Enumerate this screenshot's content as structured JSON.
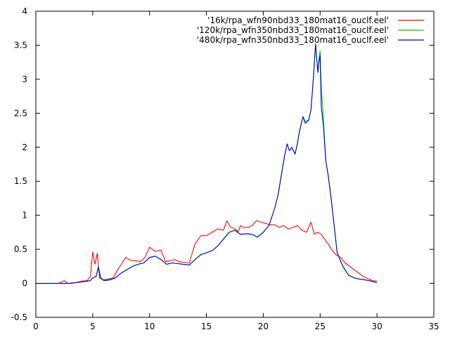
{
  "chart_data": {
    "type": "line",
    "title": "",
    "xlabel": "",
    "ylabel": "",
    "xlim": [
      0,
      35
    ],
    "ylim": [
      -0.5,
      4
    ],
    "xticks": [
      0,
      5,
      10,
      15,
      20,
      25,
      30,
      35
    ],
    "yticks": [
      -0.5,
      0,
      0.5,
      1,
      1.5,
      2,
      2.5,
      3,
      3.5,
      4
    ],
    "grid": false,
    "legend_position": "top-right",
    "series": [
      {
        "name": "'16k/rpa_wfn90nbd33_180mat16_ouclf.eel'",
        "color": "#ff0000",
        "x": [
          0,
          2,
          2.5,
          2.8,
          3.5,
          4,
          4.5,
          4.8,
          5.0,
          5.2,
          5.4,
          5.6,
          5.9,
          6.3,
          6.8,
          7.2,
          7.6,
          7.9,
          8.3,
          8.8,
          9.2,
          9.6,
          10.0,
          10.5,
          11.0,
          11.4,
          11.8,
          12.2,
          12.6,
          13.0,
          13.5,
          14.0,
          14.5,
          15.0,
          15.5,
          16.0,
          16.5,
          16.8,
          17.1,
          17.5,
          17.8,
          18.0,
          18.3,
          18.7,
          19.0,
          19.4,
          19.8,
          20.2,
          20.6,
          21.0,
          21.4,
          21.8,
          22.2,
          22.6,
          23.0,
          23.4,
          23.8,
          24.2,
          24.5,
          24.8,
          25.1,
          25.4,
          25.7,
          26.0,
          26.4,
          26.8,
          27.2,
          27.6,
          28.0,
          28.4,
          28.8,
          29.2,
          29.6,
          30.0
        ],
        "y": [
          0,
          0,
          0.04,
          0,
          0.01,
          0.03,
          0.04,
          0.1,
          0.46,
          0.28,
          0.44,
          0.08,
          0.05,
          0.06,
          0.08,
          0.2,
          0.3,
          0.38,
          0.34,
          0.33,
          0.32,
          0.38,
          0.53,
          0.47,
          0.49,
          0.32,
          0.33,
          0.35,
          0.32,
          0.31,
          0.3,
          0.58,
          0.7,
          0.7,
          0.75,
          0.8,
          0.78,
          0.92,
          0.83,
          0.8,
          0.76,
          0.85,
          0.82,
          0.82,
          0.85,
          0.92,
          0.9,
          0.88,
          0.86,
          0.86,
          0.82,
          0.85,
          0.8,
          0.82,
          0.85,
          0.78,
          0.75,
          0.9,
          0.72,
          0.75,
          0.72,
          0.65,
          0.58,
          0.5,
          0.42,
          0.38,
          0.3,
          0.25,
          0.2,
          0.15,
          0.1,
          0.07,
          0.04,
          0.03
        ]
      },
      {
        "name": "'120k/rpa_wfn350nbd33_180mat16_ouclf.eel'",
        "color": "#00cc00",
        "x": [
          0,
          2,
          3,
          4,
          4.8,
          5.0,
          5.3,
          5.5,
          5.7,
          6.0,
          6.5,
          7.0,
          7.5,
          8.0,
          8.5,
          9.0,
          9.5,
          10.0,
          10.5,
          11.0,
          11.5,
          12.0,
          12.5,
          13.0,
          13.5,
          14.0,
          14.5,
          15.0,
          15.5,
          16.0,
          16.5,
          17.0,
          17.5,
          18.0,
          18.5,
          19.0,
          19.5,
          20.0,
          20.5,
          21.0,
          21.3,
          21.6,
          21.9,
          22.1,
          22.3,
          22.5,
          22.8,
          23.0,
          23.2,
          23.5,
          23.7,
          24.0,
          24.2,
          24.4,
          24.6,
          24.8,
          24.9,
          25.0,
          25.1,
          25.3,
          25.5,
          25.7,
          26.0,
          26.5,
          27.0,
          27.5,
          28.0,
          28.5,
          29.0,
          29.5,
          30.0
        ],
        "y": [
          0,
          0,
          0,
          0.02,
          0.04,
          0.08,
          0.1,
          0.25,
          0.08,
          0.04,
          0.05,
          0.08,
          0.15,
          0.2,
          0.25,
          0.28,
          0.3,
          0.38,
          0.4,
          0.35,
          0.28,
          0.3,
          0.29,
          0.28,
          0.27,
          0.35,
          0.42,
          0.45,
          0.48,
          0.55,
          0.65,
          0.75,
          0.78,
          0.72,
          0.73,
          0.72,
          0.68,
          0.75,
          0.85,
          1.1,
          1.3,
          1.6,
          1.9,
          2.05,
          1.95,
          2.0,
          1.9,
          2.05,
          2.25,
          2.45,
          2.38,
          2.4,
          2.55,
          3.0,
          3.5,
          3.1,
          3.3,
          3.42,
          2.9,
          2.4,
          1.8,
          1.6,
          1.2,
          0.45,
          0.25,
          0.12,
          0.08,
          0.06,
          0.05,
          0.03,
          0.01
        ]
      },
      {
        "name": "'480k/rpa_wfn350nbd33_180mat16_ouclf.eel'",
        "color": "#0000cc",
        "x": [
          0,
          2,
          3,
          4,
          4.8,
          5.0,
          5.3,
          5.5,
          5.7,
          6.0,
          6.5,
          7.0,
          7.5,
          8.0,
          8.5,
          9.0,
          9.5,
          10.0,
          10.5,
          11.0,
          11.5,
          12.0,
          12.5,
          13.0,
          13.5,
          14.0,
          14.5,
          15.0,
          15.5,
          16.0,
          16.5,
          17.0,
          17.5,
          18.0,
          18.5,
          19.0,
          19.5,
          20.0,
          20.5,
          21.0,
          21.3,
          21.6,
          21.9,
          22.1,
          22.3,
          22.5,
          22.8,
          23.0,
          23.2,
          23.5,
          23.7,
          24.0,
          24.2,
          24.4,
          24.6,
          24.8,
          24.9,
          25.0,
          25.1,
          25.3,
          25.5,
          25.7,
          26.0,
          26.5,
          27.0,
          27.5,
          28.0,
          28.5,
          29.0,
          29.5,
          30.0
        ],
        "y": [
          0,
          0,
          0,
          0.02,
          0.04,
          0.08,
          0.1,
          0.24,
          0.08,
          0.04,
          0.05,
          0.08,
          0.15,
          0.2,
          0.25,
          0.28,
          0.3,
          0.38,
          0.4,
          0.35,
          0.28,
          0.3,
          0.29,
          0.28,
          0.27,
          0.35,
          0.42,
          0.45,
          0.48,
          0.55,
          0.65,
          0.75,
          0.78,
          0.72,
          0.73,
          0.72,
          0.68,
          0.75,
          0.85,
          1.1,
          1.3,
          1.6,
          1.9,
          2.05,
          1.95,
          2.0,
          1.9,
          2.05,
          2.25,
          2.45,
          2.35,
          2.4,
          2.55,
          3.0,
          3.52,
          3.1,
          3.25,
          3.35,
          2.6,
          2.3,
          1.8,
          1.6,
          1.2,
          0.45,
          0.25,
          0.12,
          0.08,
          0.06,
          0.05,
          0.03,
          0.01
        ]
      }
    ]
  }
}
